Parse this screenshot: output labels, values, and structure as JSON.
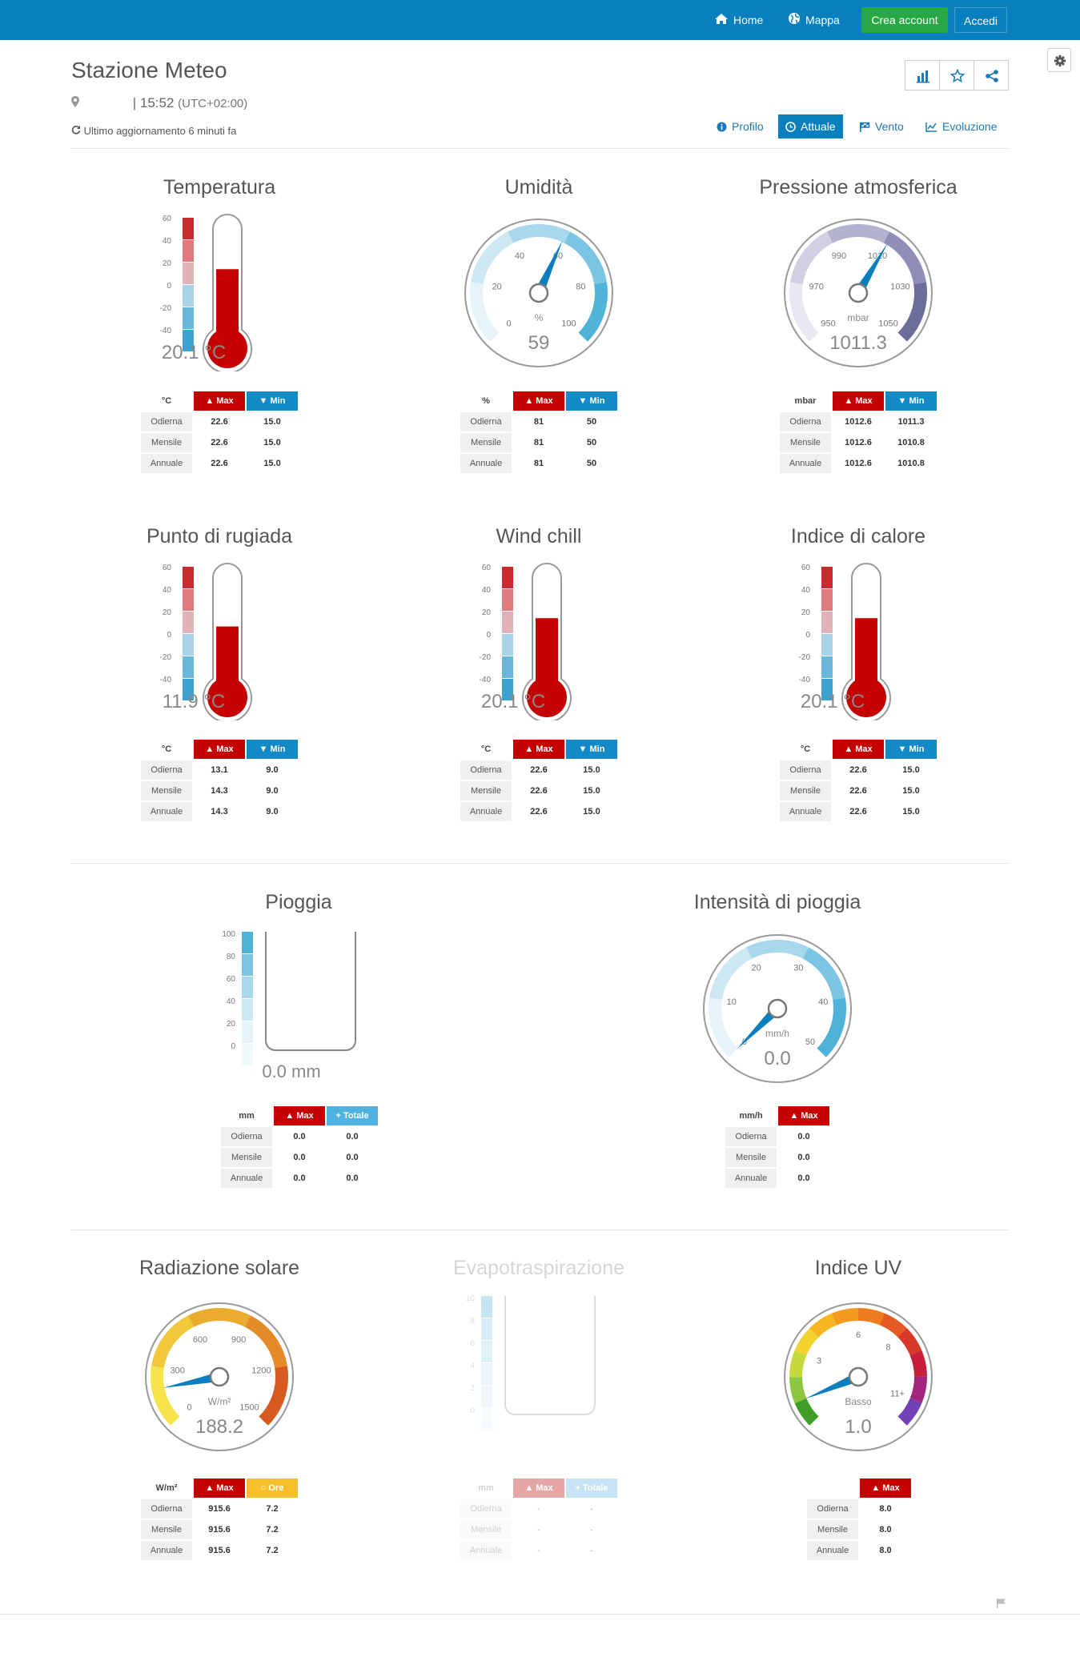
{
  "nav": {
    "home": "Home",
    "map": "Mappa",
    "signup": "Crea account",
    "login": "Accedi"
  },
  "header": {
    "title": "Stazione Meteo",
    "time": "| 15:52",
    "timezone": "(UTC+02:00)",
    "updated": "Ultimo aggiornamento 6 minuti fa"
  },
  "tabs": [
    "Profilo",
    "Attuale",
    "Vento",
    "Evoluzione"
  ],
  "labels": {
    "max": "Max",
    "min": "Min",
    "totale": "Totale",
    "ore": "Ore",
    "odierna": "Odierna",
    "mensile": "Mensile",
    "annuale": "Annuale"
  },
  "thermo_scale": [
    "60",
    "40",
    "20",
    "0",
    "-20",
    "-40"
  ],
  "rain_scale": [
    "100",
    "80",
    "60",
    "40",
    "20",
    "0"
  ],
  "evapo_scale": [
    "10",
    "8",
    "6",
    "4",
    "2",
    "0"
  ],
  "temperatura": {
    "title": "Temperatura",
    "value": "20.1 °C",
    "reading": 20.1,
    "unit": "°C",
    "rows": [
      [
        "22.6",
        "15.0"
      ],
      [
        "22.6",
        "15.0"
      ],
      [
        "22.6",
        "15.0"
      ]
    ]
  },
  "umidita": {
    "title": "Umidità",
    "value": "59",
    "reading": 59,
    "unit": "%",
    "gauge_unit": "%",
    "ticks": [
      "0",
      "20",
      "40",
      "60",
      "80",
      "100"
    ],
    "rows": [
      [
        "81",
        "50"
      ],
      [
        "81",
        "50"
      ],
      [
        "81",
        "50"
      ]
    ]
  },
  "pressione": {
    "title": "Pressione atmosferica",
    "value": "1011.3",
    "reading": 1011.3,
    "unit": "mbar",
    "gauge_unit": "mbar",
    "ticks": [
      "950",
      "970",
      "990",
      "1010",
      "1030",
      "1050"
    ],
    "rows": [
      [
        "1012.6",
        "1011.3"
      ],
      [
        "1012.6",
        "1010.8"
      ],
      [
        "1012.6",
        "1010.8"
      ]
    ]
  },
  "rugiada": {
    "title": "Punto di rugiada",
    "value": "11.9 °C",
    "reading": 11.9,
    "unit": "°C",
    "rows": [
      [
        "13.1",
        "9.0"
      ],
      [
        "14.3",
        "9.0"
      ],
      [
        "14.3",
        "9.0"
      ]
    ]
  },
  "windchill": {
    "title": "Wind chill",
    "value": "20.1 °C",
    "reading": 20.1,
    "unit": "°C",
    "rows": [
      [
        "22.6",
        "15.0"
      ],
      [
        "22.6",
        "15.0"
      ],
      [
        "22.6",
        "15.0"
      ]
    ]
  },
  "calore": {
    "title": "Indice di calore",
    "value": "20.1 °C",
    "reading": 20.1,
    "unit": "°C",
    "rows": [
      [
        "22.6",
        "15.0"
      ],
      [
        "22.6",
        "15.0"
      ],
      [
        "22.6",
        "15.0"
      ]
    ]
  },
  "pioggia": {
    "title": "Pioggia",
    "value": "0.0  mm",
    "reading": 0.0,
    "unit": "mm",
    "rows": [
      [
        "0.0",
        "0.0"
      ],
      [
        "0.0",
        "0.0"
      ],
      [
        "0.0",
        "0.0"
      ]
    ]
  },
  "intensita": {
    "title": "Intensità di pioggia",
    "value": "0.0",
    "reading": 0.0,
    "unit": "mm/h",
    "gauge_unit": "mm/h",
    "ticks": [
      "0",
      "10",
      "20",
      "30",
      "40",
      "50"
    ],
    "rows": [
      [
        "0.0"
      ],
      [
        "0.0"
      ],
      [
        "0.0"
      ]
    ]
  },
  "radiazione": {
    "title": "Radiazione solare",
    "value": "188.2",
    "reading": 188.2,
    "unit": "W/m²",
    "gauge_unit": "W/m²",
    "ticks": [
      "0",
      "300",
      "600",
      "900",
      "1200",
      "1500"
    ],
    "rows": [
      [
        "915.6",
        "7.2"
      ],
      [
        "915.6",
        "7.2"
      ],
      [
        "915.6",
        "7.2"
      ]
    ]
  },
  "evapo": {
    "title": "Evapotraspirazione",
    "unit": "mm",
    "rows": [
      [
        "-",
        "-"
      ],
      [
        "-",
        "-"
      ],
      [
        "-",
        "-"
      ]
    ]
  },
  "uv": {
    "title": "Indice UV",
    "value": "1.0",
    "reading": 1.0,
    "level": "Basso",
    "ticks": [
      "3",
      "6",
      "8",
      "11+"
    ],
    "rows": [
      [
        "8.0"
      ],
      [
        "8.0"
      ],
      [
        "8.0"
      ]
    ]
  }
}
